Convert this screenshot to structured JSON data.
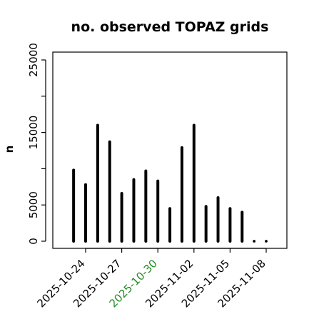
{
  "chart_data": {
    "type": "bar",
    "title": "no. observed TOPAZ grids",
    "xlabel": "",
    "ylabel": "n",
    "ylim": [
      0,
      25000
    ],
    "y_ticks": [
      0,
      5000,
      15000,
      25000
    ],
    "x_ticks": [
      {
        "date": "2025-10-24",
        "label": "2025-10-24",
        "color": "#000000"
      },
      {
        "date": "2025-10-27",
        "label": "2025-10-27",
        "color": "#000000"
      },
      {
        "date": "2025-10-30",
        "label": "2025-10-30",
        "color": "#228B22"
      },
      {
        "date": "2025-11-02",
        "label": "2025-11-02",
        "color": "#000000"
      },
      {
        "date": "2025-11-05",
        "label": "2025-11-05",
        "color": "#000000"
      },
      {
        "date": "2025-11-08",
        "label": "2025-11-08",
        "color": "#000000"
      }
    ],
    "x_range": [
      "2025-10-21",
      "2025-11-10"
    ],
    "dates": [
      "2025-10-23",
      "2025-10-24",
      "2025-10-25",
      "2025-10-26",
      "2025-10-27",
      "2025-10-28",
      "2025-10-29",
      "2025-10-30",
      "2025-10-31",
      "2025-11-01",
      "2025-11-02",
      "2025-11-03",
      "2025-11-04",
      "2025-11-05",
      "2025-11-06",
      "2025-11-07",
      "2025-11-08"
    ],
    "values": [
      9800,
      7800,
      16000,
      13700,
      6600,
      8500,
      9700,
      8300,
      4500,
      12900,
      16000,
      4800,
      6000,
      4500,
      4000,
      0,
      0
    ],
    "bar_color": "#000000",
    "grid": false,
    "legend": "none"
  }
}
